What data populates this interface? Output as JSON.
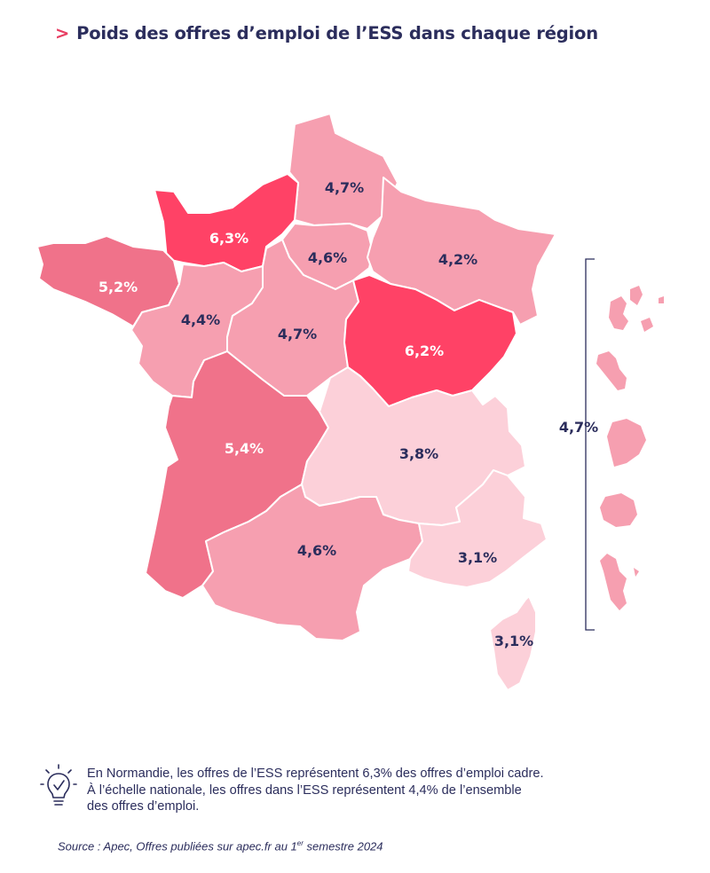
{
  "title": {
    "chevron": ">",
    "text": "Poids des offres d’emploi de l’ESS dans chaque région"
  },
  "regions": [
    {
      "id": "hauts-de-france",
      "value": "4,7%",
      "level": 3
    },
    {
      "id": "normandie",
      "value": "6,3%",
      "level": 1
    },
    {
      "id": "ile-de-france",
      "value": "4,6%",
      "level": 3
    },
    {
      "id": "grand-est",
      "value": "4,2%",
      "level": 3
    },
    {
      "id": "bretagne",
      "value": "5,2%",
      "level": 2
    },
    {
      "id": "pays-de-la-loire",
      "value": "4,4%",
      "level": 3
    },
    {
      "id": "centre-val-de-loire",
      "value": "4,7%",
      "level": 3
    },
    {
      "id": "bourgogne-franche-comte",
      "value": "6,2%",
      "level": 1
    },
    {
      "id": "nouvelle-aquitaine",
      "value": "5,4%",
      "level": 2
    },
    {
      "id": "auvergne-rhone-alpes",
      "value": "3,8%",
      "level": 4
    },
    {
      "id": "occitanie",
      "value": "4,6%",
      "level": 3
    },
    {
      "id": "provence-alpes-cote-d-azur",
      "value": "3,1%",
      "level": 4
    },
    {
      "id": "corse",
      "value": "3,1%",
      "level": 4
    }
  ],
  "overseas": {
    "value": "4,7%",
    "level": 3
  },
  "colors": {
    "level1": "#ff4266",
    "level2": "#f0728a",
    "level3": "#f69fb0",
    "level4": "#fcd0d9",
    "label_dark": "#2b2d5c",
    "label_light": "#ffffff",
    "accent": "#e83e62"
  },
  "note": {
    "icon": "lightbulb-icon",
    "line1": "En Normandie, les offres de l’ESS représentent 6,3% des offres d’emploi cadre.",
    "line2": "À l’échelle nationale, les offres dans l’ESS représentent 4,4%  de l’ensemble",
    "line3": "des offres d’emploi."
  },
  "source": {
    "prefix": "Source : Apec, Offres publiées sur apec.fr au 1",
    "superscript": "er",
    "suffix": " semestre 2024"
  }
}
